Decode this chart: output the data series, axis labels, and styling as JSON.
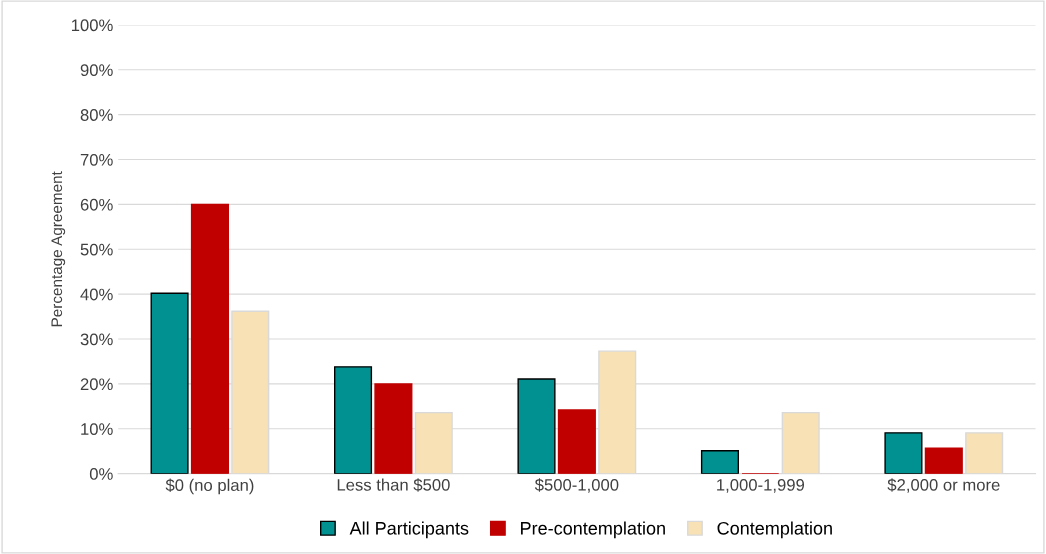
{
  "chart_data": {
    "type": "bar",
    "ylabel": "Percentage Agreement",
    "categories": [
      "$0 (no plan)",
      "Less than $500",
      "$500-1,000",
      "1,000-1,999",
      "$2,000 or more"
    ],
    "series": [
      {
        "name": "All Participants",
        "color": "#009190",
        "values": [
          40.2,
          23.8,
          21.1,
          5.1,
          9.1
        ]
      },
      {
        "name": "Pre-contemplation",
        "color": "#c00000",
        "values": [
          60,
          20,
          14.2,
          0,
          5.7
        ]
      },
      {
        "name": "Contemplation",
        "color": "#f7e1b5",
        "values": [
          36.2,
          13.6,
          27.3,
          13.6,
          9.1
        ]
      }
    ],
    "ylim": [
      0,
      100
    ],
    "yticks": [
      {
        "value": 0,
        "label": "0%"
      },
      {
        "value": 10,
        "label": "10%"
      },
      {
        "value": 20,
        "label": "20%"
      },
      {
        "value": 30,
        "label": "30%"
      },
      {
        "value": 40,
        "label": "40%"
      },
      {
        "value": 50,
        "label": "50%"
      },
      {
        "value": 60,
        "label": "60%"
      },
      {
        "value": 70,
        "label": "70%"
      },
      {
        "value": 80,
        "label": "80%"
      },
      {
        "value": 90,
        "label": "90%"
      },
      {
        "value": 100,
        "label": "100%"
      }
    ],
    "grid": "y",
    "legend": "bottom"
  }
}
